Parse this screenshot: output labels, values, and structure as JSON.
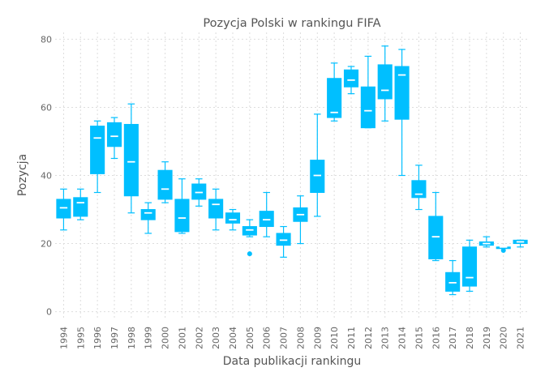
{
  "chart_data": {
    "type": "box",
    "title": "Pozycja Polski w rankingu FIFA",
    "xlabel": "Data publikacji rankingu",
    "ylabel": "Pozycja",
    "ylim": [
      -2,
      82
    ],
    "yticks": [
      0,
      20,
      40,
      60,
      80
    ],
    "grid": true,
    "color": "#00bfff",
    "median_color": "#ffffff",
    "categories": [
      "1994",
      "1995",
      "1996",
      "1997",
      "1998",
      "1999",
      "2000",
      "2001",
      "2002",
      "2003",
      "2004",
      "2005",
      "2006",
      "2007",
      "2008",
      "2009",
      "2010",
      "2011",
      "2012",
      "2013",
      "2014",
      "2015",
      "2016",
      "2017",
      "2018",
      "2019",
      "2020",
      "2021"
    ],
    "boxes": [
      {
        "min": 24,
        "q1": 27.5,
        "median": 30.5,
        "q3": 33,
        "max": 36
      },
      {
        "min": 27,
        "q1": 28,
        "median": 32,
        "q3": 33.5,
        "max": 36
      },
      {
        "min": 35,
        "q1": 40.5,
        "median": 51,
        "q3": 54.5,
        "max": 56
      },
      {
        "min": 45,
        "q1": 48.5,
        "median": 51.5,
        "q3": 55.5,
        "max": 57
      },
      {
        "min": 29,
        "q1": 34,
        "median": 44,
        "q3": 55,
        "max": 61
      },
      {
        "min": 23,
        "q1": 27,
        "median": 29,
        "q3": 30,
        "max": 32
      },
      {
        "min": 32,
        "q1": 33,
        "median": 36,
        "q3": 41.5,
        "max": 44
      },
      {
        "min": 23,
        "q1": 23.5,
        "median": 27.5,
        "q3": 33,
        "max": 39
      },
      {
        "min": 31,
        "q1": 33,
        "median": 35,
        "q3": 37.5,
        "max": 39
      },
      {
        "min": 24,
        "q1": 27.5,
        "median": 31.5,
        "q3": 33,
        "max": 36
      },
      {
        "min": 24,
        "q1": 26,
        "median": 27,
        "q3": 29,
        "max": 30
      },
      {
        "min": 22,
        "q1": 22.5,
        "median": 24,
        "q3": 25,
        "max": 27,
        "outliers": [
          17
        ]
      },
      {
        "min": 22,
        "q1": 25,
        "median": 27,
        "q3": 29.5,
        "max": 35
      },
      {
        "min": 16,
        "q1": 19.5,
        "median": 21,
        "q3": 23,
        "max": 25
      },
      {
        "min": 20,
        "q1": 26.5,
        "median": 28.5,
        "q3": 30.5,
        "max": 34
      },
      {
        "min": 28,
        "q1": 35,
        "median": 40,
        "q3": 44.5,
        "max": 58
      },
      {
        "min": 56,
        "q1": 57,
        "median": 58.5,
        "q3": 68.5,
        "max": 73
      },
      {
        "min": 64,
        "q1": 66,
        "median": 68,
        "q3": 71,
        "max": 72
      },
      {
        "min": 54,
        "q1": 54,
        "median": 59,
        "q3": 66,
        "max": 75
      },
      {
        "min": 56,
        "q1": 62.5,
        "median": 65,
        "q3": 72.5,
        "max": 78
      },
      {
        "min": 40,
        "q1": 56.5,
        "median": 69.5,
        "q3": 72,
        "max": 77
      },
      {
        "min": 30,
        "q1": 33.5,
        "median": 34.5,
        "q3": 38.5,
        "max": 43
      },
      {
        "min": 15,
        "q1": 15.5,
        "median": 22,
        "q3": 28,
        "max": 35
      },
      {
        "min": 5,
        "q1": 6,
        "median": 8.5,
        "q3": 11.5,
        "max": 15
      },
      {
        "min": 6,
        "q1": 7.5,
        "median": 10,
        "q3": 19,
        "max": 21
      },
      {
        "min": 19,
        "q1": 19.5,
        "median": 20,
        "q3": 20.5,
        "max": 22
      },
      {
        "min": 19,
        "q1": 19,
        "median": 19,
        "q3": 19,
        "max": 19,
        "outliers": [
          18
        ]
      },
      {
        "min": 19,
        "q1": 20,
        "median": 20.5,
        "q3": 21,
        "max": 21
      }
    ]
  }
}
